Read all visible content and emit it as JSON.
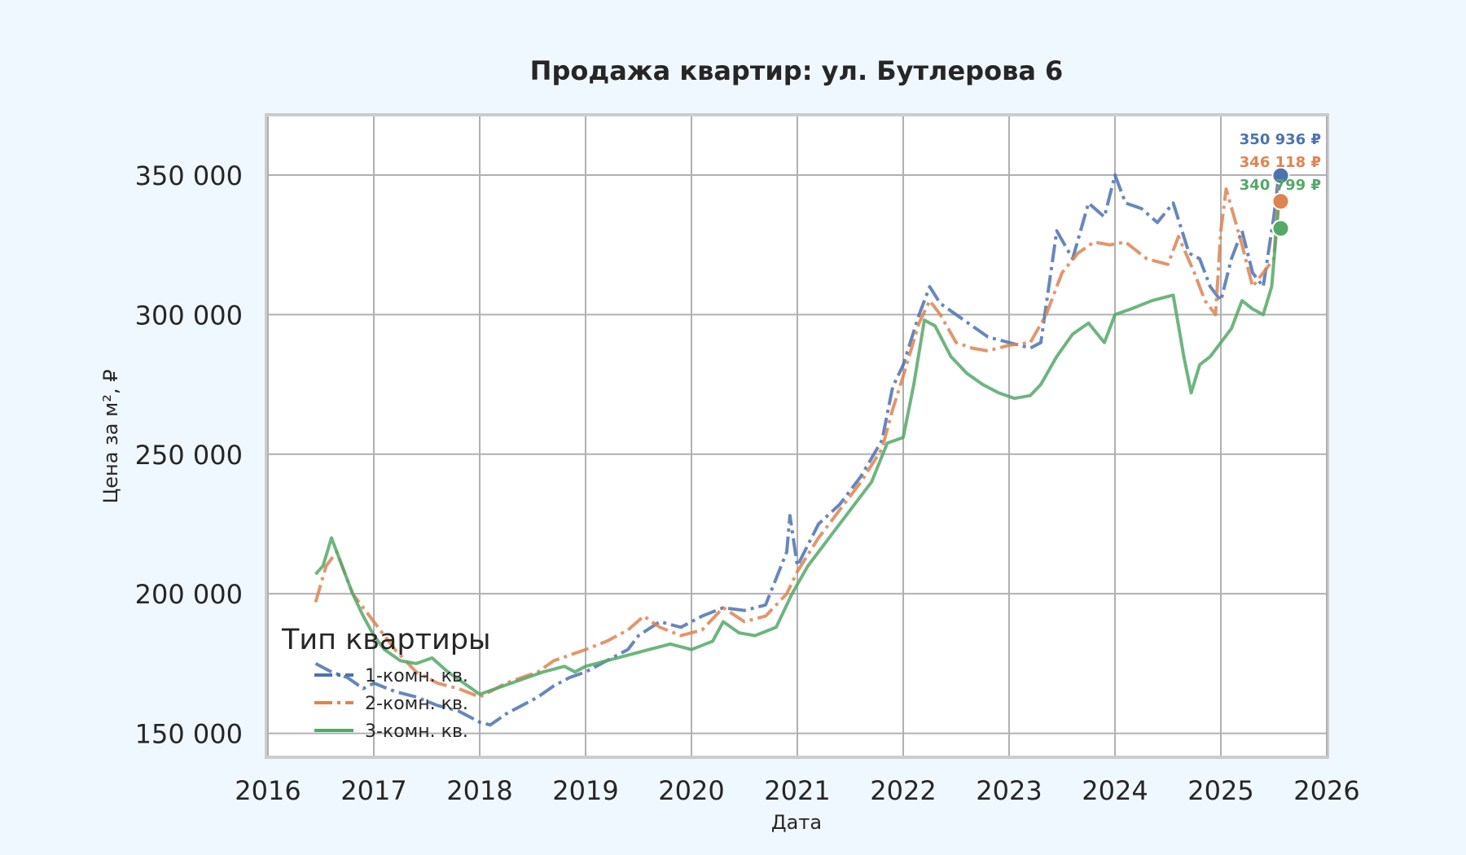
{
  "colors": {
    "background": "#f0f8ff",
    "plot_background": "#ffffff",
    "grid": "#b0b0b0",
    "frame": "#cccccc",
    "text": "#262626"
  },
  "chart_data": {
    "type": "line",
    "title": "Продажа квартир: ул. Бутлерова 6",
    "xlabel": "Дата",
    "ylabel": "Цена за м², ₽",
    "xlim": [
      2016,
      2026
    ],
    "ylim": [
      142000,
      371000
    ],
    "xticks": [
      2016,
      2017,
      2018,
      2019,
      2020,
      2021,
      2022,
      2023,
      2024,
      2025,
      2026
    ],
    "xtick_labels": [
      "2016",
      "2017",
      "2018",
      "2019",
      "2020",
      "2021",
      "2022",
      "2023",
      "2024",
      "2025",
      "2026"
    ],
    "yticks": [
      150000,
      200000,
      250000,
      300000,
      350000
    ],
    "ytick_labels": [
      "150 000",
      "200 000",
      "250 000",
      "300 000",
      "350 000"
    ],
    "grid": true,
    "legend": {
      "title": "Тип квартиры",
      "position": "lower-left"
    },
    "series": [
      {
        "name": "1-комн. кв.",
        "color": "#4c72b0",
        "style": "dashdot",
        "end_label": "350 936 ₽",
        "end_value": 350936,
        "x": [
          2016.45,
          2016.6,
          2016.75,
          2016.9,
          2017.0,
          2017.2,
          2017.4,
          2017.6,
          2017.8,
          2018.0,
          2018.1,
          2018.25,
          2018.4,
          2018.55,
          2018.7,
          2018.85,
          2019.0,
          2019.2,
          2019.4,
          2019.5,
          2019.7,
          2019.9,
          2020.1,
          2020.3,
          2020.5,
          2020.7,
          2020.9,
          2020.93,
          2021.0,
          2021.2,
          2021.4,
          2021.6,
          2021.8,
          2021.9,
          2022.0,
          2022.15,
          2022.25,
          2022.35,
          2022.5,
          2022.65,
          2022.8,
          2023.0,
          2023.2,
          2023.3,
          2023.45,
          2023.6,
          2023.75,
          2023.9,
          2024.0,
          2024.1,
          2024.25,
          2024.4,
          2024.55,
          2024.7,
          2024.8,
          2024.9,
          2025.0,
          2025.1,
          2025.2,
          2025.3,
          2025.4,
          2025.5,
          2025.55
        ],
        "y": [
          175000,
          172000,
          170000,
          166000,
          168000,
          165000,
          163000,
          160000,
          158000,
          154000,
          153000,
          157000,
          160000,
          163000,
          167000,
          170000,
          172000,
          176000,
          180000,
          185000,
          190000,
          188000,
          192000,
          195000,
          194000,
          196000,
          215000,
          228000,
          210000,
          225000,
          232000,
          242000,
          255000,
          274000,
          282000,
          300000,
          310000,
          304000,
          300000,
          296000,
          292000,
          290000,
          288000,
          290000,
          330000,
          320000,
          340000,
          335000,
          350000,
          340000,
          338000,
          333000,
          340000,
          322000,
          320000,
          310000,
          305000,
          320000,
          330000,
          315000,
          310000,
          335000,
          350936
        ]
      },
      {
        "name": "2-комн. кв.",
        "color": "#dd8452",
        "style": "dashdot",
        "end_label": "346 118 ₽",
        "end_value": 346118,
        "x": [
          2016.45,
          2016.55,
          2016.65,
          2016.8,
          2016.9,
          2017.0,
          2017.2,
          2017.4,
          2017.6,
          2017.8,
          2018.0,
          2018.1,
          2018.25,
          2018.4,
          2018.55,
          2018.7,
          2018.85,
          2019.0,
          2019.2,
          2019.4,
          2019.55,
          2019.7,
          2019.9,
          2020.1,
          2020.3,
          2020.5,
          2020.7,
          2020.9,
          2021.0,
          2021.2,
          2021.4,
          2021.6,
          2021.8,
          2021.9,
          2022.0,
          2022.15,
          2022.25,
          2022.35,
          2022.5,
          2022.65,
          2022.8,
          2023.0,
          2023.2,
          2023.35,
          2023.5,
          2023.65,
          2023.8,
          2023.95,
          2024.1,
          2024.3,
          2024.5,
          2024.6,
          2024.75,
          2024.85,
          2024.95,
          2025.0,
          2025.05,
          2025.2,
          2025.3,
          2025.4,
          2025.5,
          2025.55
        ],
        "y": [
          197000,
          210000,
          215000,
          200000,
          195000,
          190000,
          180000,
          172000,
          168000,
          166000,
          163000,
          165000,
          168000,
          170000,
          172000,
          176000,
          178000,
          180000,
          183000,
          187000,
          192000,
          188000,
          185000,
          187000,
          195000,
          190000,
          192000,
          200000,
          208000,
          220000,
          230000,
          240000,
          252000,
          266000,
          278000,
          297000,
          305000,
          300000,
          290000,
          288000,
          287000,
          289000,
          290000,
          300000,
          315000,
          322000,
          326000,
          325000,
          326000,
          320000,
          318000,
          328000,
          315000,
          305000,
          300000,
          330000,
          345000,
          325000,
          310000,
          315000,
          320000,
          346118
        ]
      },
      {
        "name": "3-комн. кв.",
        "color": "#55a868",
        "style": "solid",
        "end_label": "340 799 ₽",
        "end_value": 340799,
        "x": [
          2016.45,
          2016.52,
          2016.6,
          2016.7,
          2016.8,
          2016.9,
          2017.0,
          2017.1,
          2017.25,
          2017.4,
          2017.55,
          2017.7,
          2017.85,
          2018.0,
          2018.15,
          2018.3,
          2018.45,
          2018.6,
          2018.8,
          2018.9,
          2019.0,
          2019.2,
          2019.4,
          2019.6,
          2019.8,
          2020.0,
          2020.2,
          2020.3,
          2020.45,
          2020.6,
          2020.8,
          2020.95,
          2021.1,
          2021.3,
          2021.5,
          2021.7,
          2021.85,
          2022.0,
          2022.1,
          2022.2,
          2022.3,
          2022.45,
          2022.6,
          2022.75,
          2022.9,
          2023.05,
          2023.2,
          2023.3,
          2023.45,
          2023.6,
          2023.75,
          2023.9,
          2024.0,
          2024.15,
          2024.35,
          2024.55,
          2024.65,
          2024.72,
          2024.8,
          2024.9,
          2025.0,
          2025.1,
          2025.2,
          2025.3,
          2025.4,
          2025.48,
          2025.55
        ],
        "y": [
          207000,
          210000,
          220000,
          210000,
          200000,
          192000,
          185000,
          180000,
          176000,
          175000,
          177000,
          172000,
          168000,
          164000,
          166000,
          168000,
          170000,
          172000,
          174000,
          172000,
          174000,
          176000,
          178000,
          180000,
          182000,
          180000,
          183000,
          190000,
          186000,
          185000,
          188000,
          200000,
          210000,
          220000,
          230000,
          240000,
          254000,
          256000,
          275000,
          298000,
          296000,
          285000,
          279000,
          275000,
          272000,
          270000,
          271000,
          275000,
          285000,
          293000,
          297000,
          290000,
          300000,
          302000,
          305000,
          307000,
          285000,
          272000,
          282000,
          285000,
          290000,
          295000,
          305000,
          302000,
          300000,
          310000,
          340799
        ]
      }
    ]
  }
}
